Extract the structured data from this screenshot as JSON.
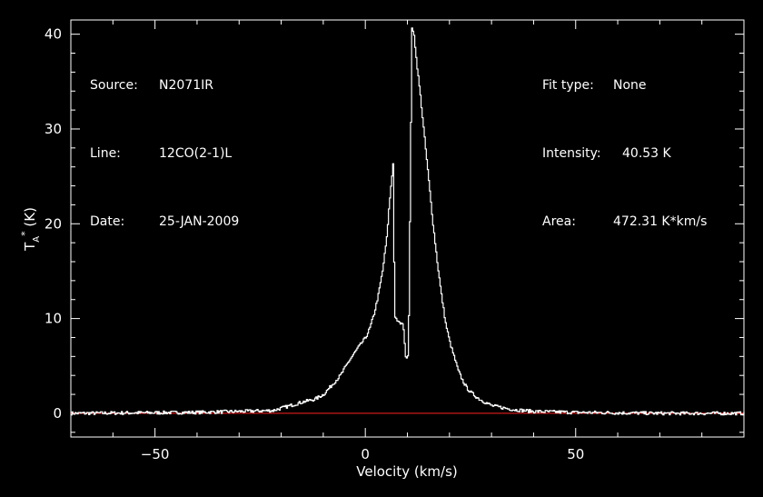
{
  "header": {
    "left": [
      {
        "label": "Source:",
        "value": "N2071IR"
      },
      {
        "label": "Line:",
        "value": "12CO(2-1)L"
      },
      {
        "label": "Date:",
        "value": "25-JAN-2009"
      }
    ],
    "right": [
      {
        "label": "Fit type:",
        "value": "None"
      },
      {
        "label": "Intensity:",
        "value": "40.53 K"
      },
      {
        "label": "Area:",
        "value": "472.31 K*km/s"
      }
    ]
  },
  "chart_data": {
    "type": "line",
    "xlabel": "Velocity (km/s)",
    "ylabel": "T_A^* (K)",
    "xlim": [
      -70,
      90
    ],
    "ylim": [
      -2.5,
      41.5
    ],
    "xticks": [
      -50,
      0,
      50
    ],
    "yticks": [
      0,
      10,
      20,
      30,
      40
    ],
    "colors": {
      "line": "#ffffff",
      "baseline": "#ff2020",
      "axes": "#ffffff"
    },
    "baseline_y": 0,
    "series": [
      {
        "x": [
          -70,
          -40,
          -30,
          -22,
          -18,
          -15,
          -12,
          -10,
          -8,
          -6,
          -4,
          -2,
          0,
          1,
          2,
          3,
          4,
          5,
          5.5,
          6,
          6.5,
          6.8,
          7,
          7.5,
          8,
          8.5,
          9,
          9.5,
          10,
          10.3,
          10.6,
          11,
          11.5,
          12,
          12.5,
          13,
          14,
          15,
          16,
          17,
          18,
          19,
          20,
          21,
          22,
          23,
          24,
          25,
          27,
          30,
          35,
          40,
          50,
          60,
          70,
          80,
          90
        ],
        "y": [
          0,
          0.1,
          0.2,
          0.3,
          0.8,
          1.2,
          1.5,
          2.0,
          3.0,
          4.0,
          5.5,
          6.8,
          8.0,
          9.0,
          10.5,
          12.5,
          15.0,
          18.5,
          21.5,
          24.0,
          26.3,
          14.0,
          10.0,
          9.8,
          9.5,
          9.6,
          9.0,
          6.0,
          6.0,
          11.0,
          25.0,
          40.5,
          40.0,
          37.5,
          35.5,
          33.5,
          29.0,
          24.5,
          20.0,
          16.0,
          12.5,
          9.5,
          7.5,
          6.0,
          4.5,
          3.5,
          2.7,
          2.2,
          1.5,
          0.8,
          0.4,
          0.2,
          0.1,
          0.05,
          0,
          0,
          0
        ]
      }
    ]
  }
}
